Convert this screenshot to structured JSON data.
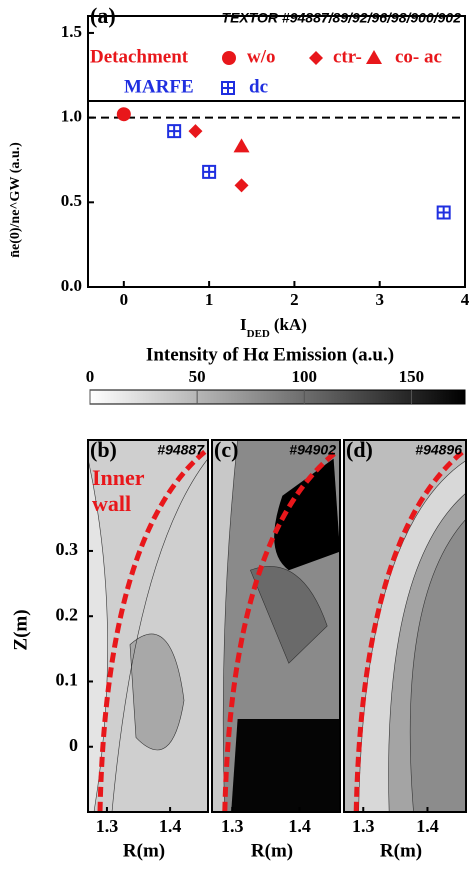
{
  "chart_data": [
    {
      "type": "scatter",
      "panel_label": "(a)",
      "title": "TEXTOR #94887/89/92/96/98/900/902",
      "xlim": [
        -0.42,
        4.0
      ],
      "xticks": [
        0,
        1,
        2,
        3,
        4
      ],
      "ylim": [
        0,
        1.6
      ],
      "yticks": [
        {
          "value": 0,
          "label": "0.0"
        },
        {
          "value": 0.5,
          "label": "0.5"
        },
        {
          "value": 1,
          "label": "1.0"
        },
        {
          "value": 1.5,
          "label": "1.5"
        }
      ],
      "x_label": "I",
      "x_label_sub": "DED",
      "x_label_unit": "(kA)",
      "y_label": "n̄e(0)/ne^GW (a.u.)",
      "reference_line": 1,
      "legend_groups": [
        {
          "name": "Detachment",
          "color": "#e8171b"
        },
        {
          "name": "MARFE",
          "color": "#1f2fe0"
        }
      ],
      "series": [
        {
          "name": "w/o",
          "group": 0,
          "marker": "circle",
          "color": "#e8171b",
          "x": [
            0
          ],
          "y": [
            1.02
          ]
        },
        {
          "name": "ctr-",
          "group": 0,
          "marker": "diamond",
          "color": "#e8171b",
          "x": [
            0.84,
            1.38
          ],
          "y": [
            0.92,
            0.6
          ]
        },
        {
          "name": "co- ac",
          "group": 0,
          "marker": "triangle",
          "color": "#e8171b",
          "x": [
            1.38
          ],
          "y": [
            0.83
          ]
        },
        {
          "name": "dc",
          "group": 1,
          "marker": "square-plus",
          "color": "#1f2fe0",
          "x": [
            0.59,
            1.0,
            3.75
          ],
          "y": [
            0.92,
            0.68,
            0.44
          ]
        }
      ]
    },
    {
      "type": "colorbar",
      "title": "Intensity of Hα Emission (a.u.)",
      "xlim": [
        0,
        175
      ],
      "xticks": [
        0,
        50,
        100,
        150
      ],
      "colors": [
        "#ffffff",
        "#000000"
      ]
    },
    {
      "type": "image",
      "panel_label": "(b)",
      "title": "#94887",
      "annotation_lines": [
        "Inner",
        "wall"
      ],
      "xlim": [
        1.27,
        1.46
      ],
      "xticks": [
        {
          "value": 1.3,
          "label": "1.3"
        },
        {
          "value": 1.4,
          "label": "1.4"
        }
      ],
      "ylim": [
        -0.1,
        0.47
      ],
      "yticks": [
        0,
        {
          "value": 0.1,
          "label": "0.1"
        },
        {
          "value": 0.2,
          "label": "0.2"
        },
        {
          "value": 0.3,
          "label": "0.3"
        }
      ],
      "x_label": "R(m)",
      "y_label": "Z(m)"
    },
    {
      "type": "image",
      "panel_label": "(c)",
      "title": "#94902",
      "xlim": [
        1.27,
        1.46
      ],
      "xticks": [
        {
          "value": 1.3,
          "label": "1.3"
        },
        {
          "value": 1.4,
          "label": "1.4"
        }
      ],
      "ylim": [
        -0.1,
        0.47
      ],
      "x_label": "R(m)"
    },
    {
      "type": "image",
      "panel_label": "(d)",
      "title": "#94896",
      "xlim": [
        1.27,
        1.46
      ],
      "xticks": [
        {
          "value": 1.3,
          "label": "1.3"
        },
        {
          "value": 1.4,
          "label": "1.4"
        }
      ],
      "ylim": [
        -0.1,
        0.47
      ],
      "x_label": "R(m)"
    }
  ]
}
